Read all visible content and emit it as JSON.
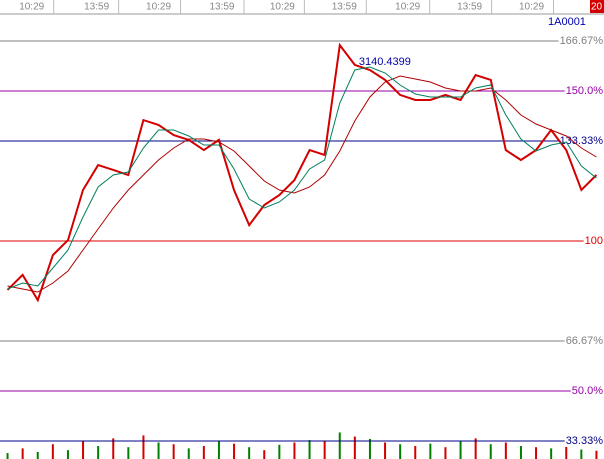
{
  "chart_data": {
    "type": "line",
    "code": "1A0001",
    "corner_badge": "20",
    "annotation": "3140.4399",
    "annotation_index": 23,
    "categories": [
      null,
      null,
      null,
      null,
      null,
      null,
      null,
      null,
      null,
      null,
      null,
      null,
      null,
      null,
      null,
      null,
      null,
      null,
      null,
      null,
      null,
      null,
      null,
      null,
      null,
      null,
      null,
      null,
      null,
      null,
      null,
      null,
      null,
      null,
      null,
      null,
      null,
      null,
      null,
      null
    ],
    "series": [
      {
        "color": "#d40000",
        "values": [
          83.7,
          88.7,
          80.3,
          95.3,
          100.3,
          117,
          125.3,
          123.7,
          122,
          140.3,
          138.7,
          135.3,
          133.7,
          130.3,
          133.7,
          117,
          105.3,
          112,
          115.3,
          120.3,
          130.3,
          128.7,
          165.3,
          158.7,
          157,
          153.7,
          148.7,
          147,
          147,
          148.7,
          147,
          155.3,
          153.7,
          130.3,
          127,
          130.3,
          137,
          130.3,
          117,
          122
        ]
      },
      {
        "color": "#b00000",
        "values": [
          85,
          84,
          83,
          86,
          90,
          97,
          104,
          111,
          117,
          122,
          127,
          131,
          134,
          134,
          133,
          130,
          125,
          120,
          117,
          116,
          118,
          122,
          130,
          140,
          148,
          153,
          155,
          154,
          153,
          151,
          150,
          150,
          151,
          147,
          142,
          139,
          137,
          135,
          131,
          128
        ]
      },
      {
        "color": "#008060",
        "values": [
          84,
          86,
          85,
          91,
          97,
          108,
          118,
          122,
          123,
          131,
          137,
          137,
          135,
          132,
          132,
          124,
          114,
          111,
          113,
          117,
          124,
          127,
          146,
          157,
          158,
          156,
          152,
          149,
          148,
          148,
          148,
          151,
          152,
          142,
          134,
          130,
          132,
          133,
          125,
          121
        ]
      }
    ],
    "volume": [
      10,
      18,
      12,
      25,
      15,
      30,
      22,
      35,
      20,
      40,
      28,
      25,
      18,
      22,
      30,
      26,
      20,
      15,
      24,
      28,
      32,
      30,
      45,
      38,
      34,
      28,
      25,
      22,
      26,
      20,
      30,
      35,
      25,
      28,
      22,
      20,
      18,
      24,
      16,
      14
    ],
    "vlim": [
      0,
      100
    ],
    "xticks": [
      {
        "value": 1.6,
        "label": "10:29"
      },
      {
        "value": 5.9,
        "label": "13:59"
      },
      {
        "value": 10,
        "label": "10:29"
      },
      {
        "value": 14.2,
        "label": "13:59"
      },
      {
        "value": 18.2,
        "label": "10:29"
      },
      {
        "value": 22.3,
        "label": "13:59"
      },
      {
        "value": 26.5,
        "label": "10:29"
      },
      {
        "value": 30.6,
        "label": "13:59"
      },
      {
        "value": 34.7,
        "label": "10:29"
      }
    ],
    "ylim": [
      27.33,
      180.33
    ],
    "yticks": [
      {
        "value": 166.67,
        "label": "166.67%"
      },
      {
        "value": 150,
        "label": "150.0%"
      },
      {
        "value": 133.33,
        "label": "133.33%"
      },
      100,
      {
        "value": 66.67,
        "label": "66.67%"
      },
      {
        "value": 50,
        "label": "50.0%"
      },
      {
        "value": 33.33,
        "label": "33.33%"
      }
    ],
    "ytick_colors": [
      "#808080",
      "#9900aa",
      "#000088",
      "#dd0000",
      "#808080",
      "#9900aa",
      "#000088"
    ],
    "grid": true
  }
}
